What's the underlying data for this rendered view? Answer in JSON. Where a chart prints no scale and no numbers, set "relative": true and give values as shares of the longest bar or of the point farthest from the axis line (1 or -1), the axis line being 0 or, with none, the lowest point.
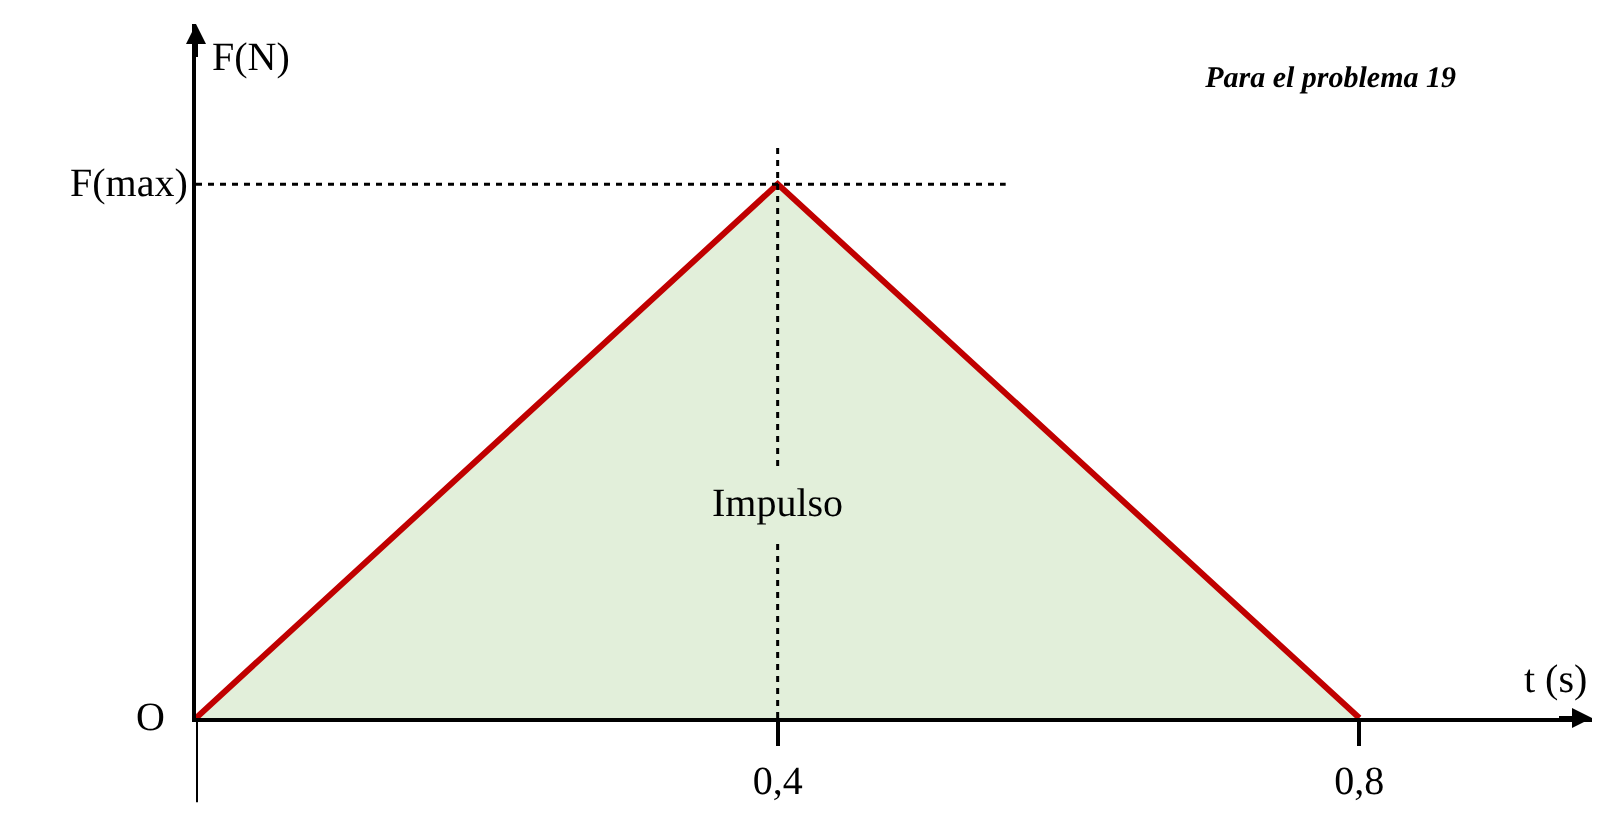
{
  "chart_data": {
    "type": "area",
    "title": "Para el problema 19",
    "xlabel": "t (s)",
    "ylabel": "F(N)",
    "x": [
      0,
      0.4,
      0.8
    ],
    "series": [
      {
        "color": "#c00000",
        "values": [
          0,
          1,
          0
        ]
      }
    ],
    "relative": true,
    "xlim": [
      0,
      0.96
    ],
    "xticks": [
      {
        "value": 0.4,
        "label": "0,4"
      },
      {
        "value": 0.8,
        "label": "0,8"
      }
    ],
    "tick_labels": "x",
    "ref_lines": [
      {
        "axis": "y",
        "value": 1,
        "label": "F(max)",
        "line_style": "dotted",
        "color": "#000000"
      },
      {
        "axis": "x",
        "value": 0.4,
        "line_style": "dotted",
        "color": "#000000"
      }
    ],
    "annotations": [
      "Impulso",
      {
        "text": "O",
        "x": 0,
        "y": 0
      }
    ]
  }
}
